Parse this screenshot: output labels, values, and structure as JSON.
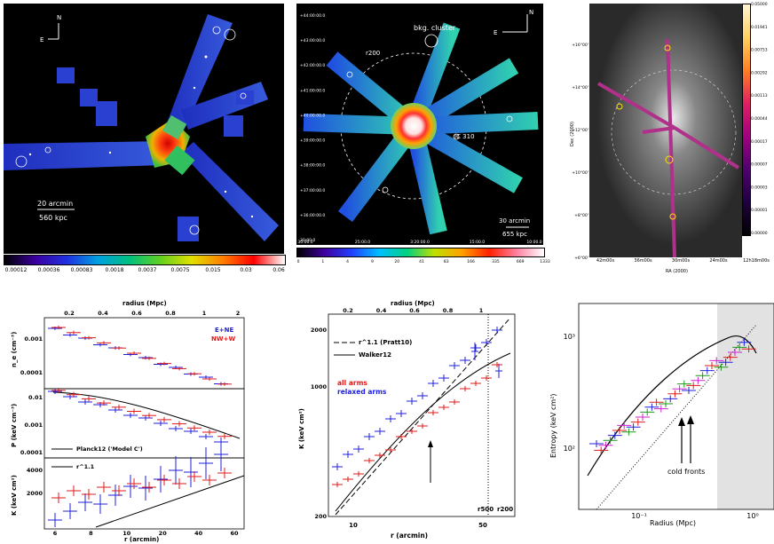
{
  "panel1": {
    "compass_n": "N",
    "compass_e": "E",
    "scalebar_arcmin": "20 arcmin",
    "scalebar_kpc": "560 kpc",
    "colorbar_ticks": [
      "0.00012",
      "0.00036",
      "0.00083",
      "0.0018",
      "0.0037",
      "0.0075",
      "0.015",
      "0.03",
      "0.06"
    ]
  },
  "panel2": {
    "compass_n": "N",
    "compass_e": "E",
    "bkg_cluster": "bkg. cluster",
    "r200": "r200",
    "ic310": "IC 310",
    "scalebar_arcmin": "30 arcmin",
    "scalebar_kpc": "655 kpc",
    "dec_ticks": [
      "+44:00:00.0",
      "+43:00:00.0",
      "+42:00:00.0",
      "+41:00:00.0",
      "+40:00:00.0",
      "+39:00:00.0",
      "+38:00:00.0",
      "+37:00:00.0",
      "+36:00:00.0",
      "30:00.0"
    ],
    "ra_ticks": [
      "30:00.0",
      "25:00.0",
      "3:20:00.0",
      "15:00.0",
      "10:00.0"
    ],
    "colorbar_ticks": [
      "0",
      "1",
      "4",
      "9",
      "20",
      "41",
      "83",
      "166",
      "335",
      "669",
      "1333"
    ]
  },
  "panel3": {
    "dec_label": "Dec (2000)",
    "ra_label": "RA (2000)",
    "dec_ticks": [
      "+16°00'",
      "+14°00'",
      "+12°00'",
      "+10°00'",
      "+8°00'",
      "+6°00'"
    ],
    "ra_ticks": [
      "42m00s",
      "36m00s",
      "30m00s",
      "24m00s",
      "12h18m00s"
    ],
    "colorbar_ticks": [
      "0.05000",
      "0.01941",
      "0.00753",
      "0.00292",
      "0.00113",
      "0.00044",
      "0.00017",
      "0.00007",
      "0.00003",
      "0.00001",
      "0.00000"
    ]
  },
  "panel4": {
    "top_axis_label": "radius (Mpc)",
    "top_ticks": [
      "0.2",
      "0.4",
      "0.6",
      "0.8",
      "1",
      "2"
    ],
    "xlabel": "r (arcmin)",
    "x_ticks": [
      "6",
      "8",
      "10",
      "20",
      "40",
      "60"
    ],
    "ne_ylabel": "n_e (cm⁻³)",
    "p_ylabel": "P (keV cm⁻³)",
    "k_ylabel": "K (keV cm²)",
    "ne_ticks": [
      "0.001",
      "0.0001"
    ],
    "p_ticks": [
      "0.01",
      "0.001",
      "0.0001"
    ],
    "k_ticks": [
      "4000",
      "2000"
    ],
    "legend_ene": "E+NE",
    "legend_nww": "NW+W",
    "legend_planck": "Planck12 ('Model C')",
    "legend_r11": "r^1.1",
    "colors": {
      "blue": "#1f1fe0",
      "red": "#e01a1a"
    }
  },
  "panel5": {
    "top_axis_label": "radius (Mpc)",
    "top_ticks": [
      "0.2",
      "0.4",
      "0.6",
      "0.8",
      "1"
    ],
    "xlabel": "r (arcmin)",
    "ylabel": "K (keV cm²)",
    "x_ticks": [
      "10",
      "50"
    ],
    "y_ticks": [
      "2000",
      "1000",
      "200"
    ],
    "legend_pratt": "r^1.1 (Pratt10)",
    "legend_walker": "Walker12",
    "label_all": "all arms",
    "label_relaxed": "relaxed arms",
    "r500": "r500",
    "r200": "r200"
  },
  "panel6": {
    "ylabel": "Entropy (keV cm²)",
    "xlabel": "Radius (Mpc)",
    "x_ticks": [
      "10⁻¹",
      "10⁰"
    ],
    "y_ticks": [
      "10³",
      "10²"
    ],
    "annotation": "cold fronts"
  }
}
